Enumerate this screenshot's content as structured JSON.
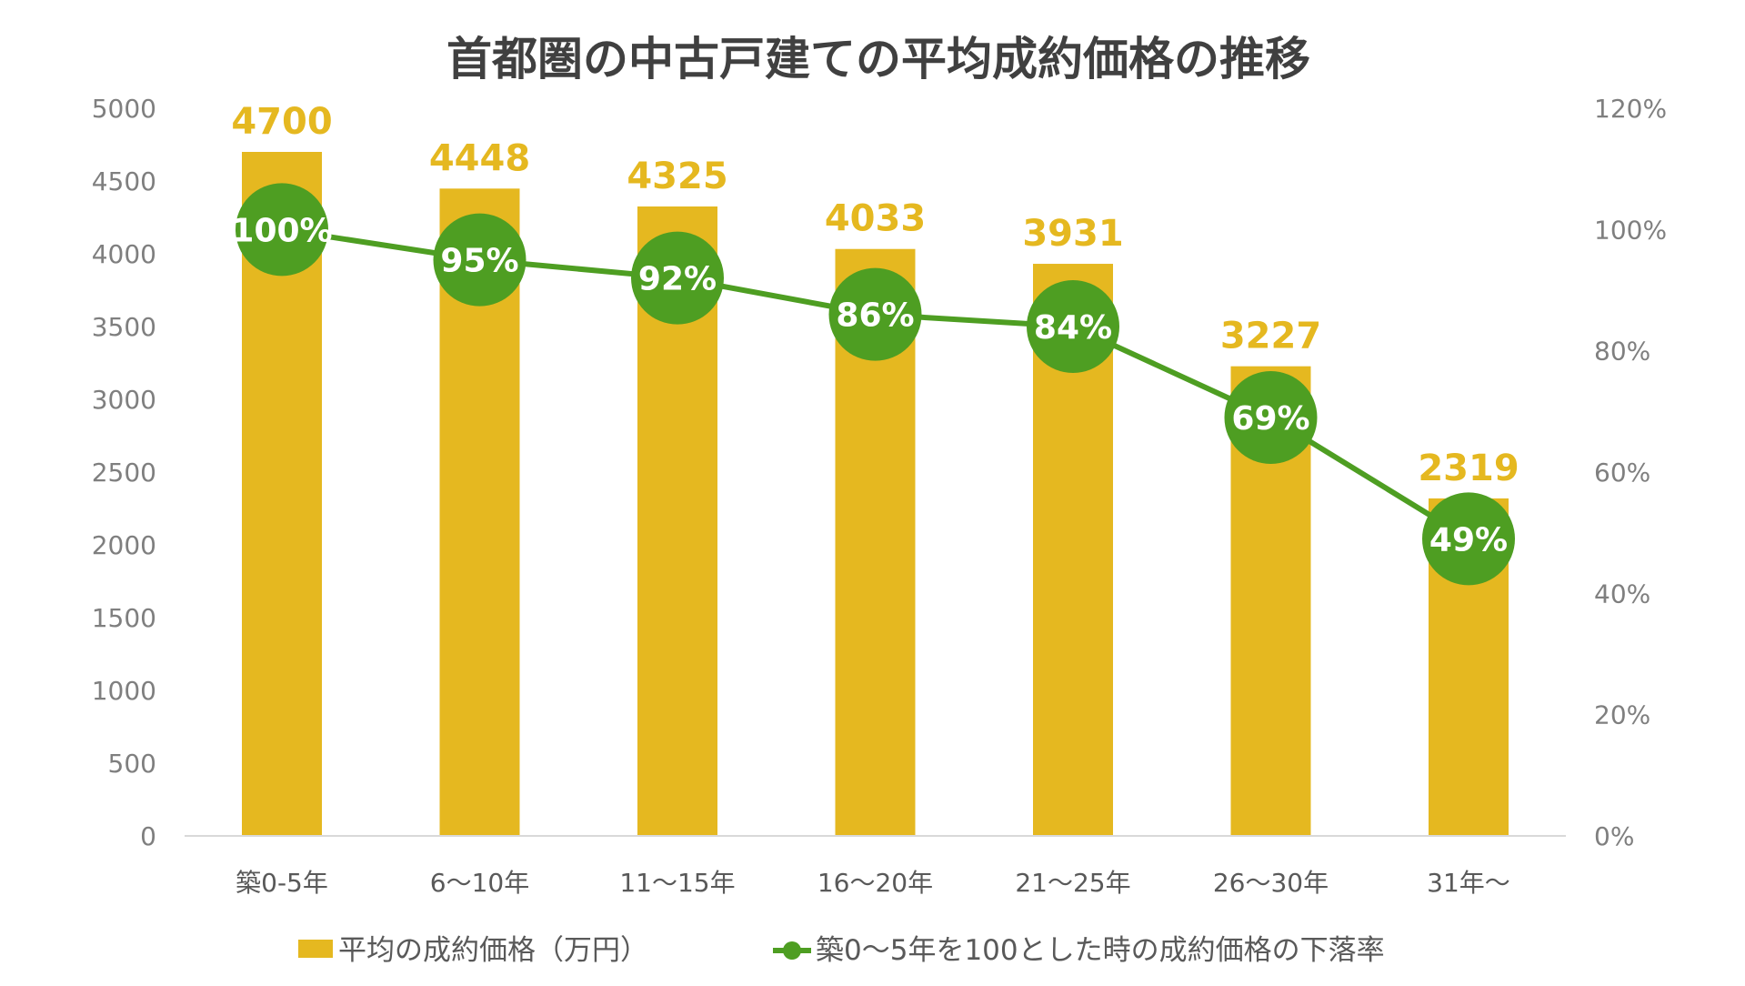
{
  "chart_data": {
    "type": "bar",
    "title": "首都圏の中古戸建ての平均成約価格の推移",
    "categories": [
      "築0-5年",
      "6〜10年",
      "11〜15年",
      "16〜20年",
      "21〜25年",
      "26〜30年",
      "31年〜"
    ],
    "series": [
      {
        "name": "平均の成約価格（万円）",
        "type": "bar",
        "axis": "left",
        "color": "#E5B820",
        "values": [
          4700,
          4448,
          4325,
          4033,
          3931,
          3227,
          2319
        ]
      },
      {
        "name": "築0〜5年を100とした時の成約価格の下落率",
        "type": "line",
        "axis": "right",
        "color": "#4E9E22",
        "values": [
          100,
          95,
          92,
          86,
          84,
          69,
          49
        ],
        "labels": [
          "100%",
          "95%",
          "92%",
          "86%",
          "84%",
          "69%",
          "49%"
        ]
      }
    ],
    "y_left": {
      "lim": [
        0,
        5000
      ],
      "ticks": [
        "0",
        "500",
        "1000",
        "1500",
        "2000",
        "2500",
        "3000",
        "3500",
        "4000",
        "4500",
        "5000"
      ]
    },
    "y_right": {
      "lim": [
        0,
        120
      ],
      "ticks": [
        "0%",
        "20%",
        "40%",
        "60%",
        "80%",
        "100%",
        "120%"
      ]
    },
    "grid": false,
    "legend_position": "bottom"
  }
}
